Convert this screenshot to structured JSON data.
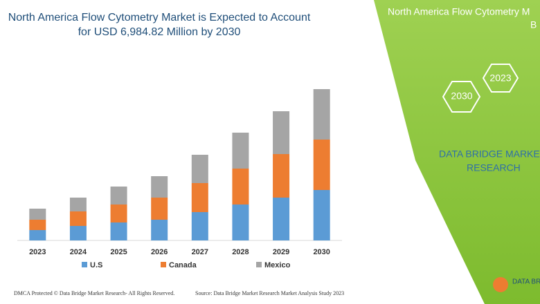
{
  "chart_data": {
    "type": "bar",
    "stacked": true,
    "title_lines": [
      "North America Flow Cytometry Market is Expected to Account",
      "for USD 6,984.82 Million by 2030"
    ],
    "categories": [
      "2023",
      "2024",
      "2025",
      "2026",
      "2027",
      "2028",
      "2029",
      "2030"
    ],
    "series": [
      {
        "name": "U.S",
        "color": "#5b9bd5",
        "values": [
          15,
          21,
          26,
          30,
          41,
          52,
          62,
          73
        ]
      },
      {
        "name": "Canada",
        "color": "#ed7d31",
        "values": [
          15,
          21,
          26,
          32,
          42,
          52,
          63,
          73
        ]
      },
      {
        "name": "Mexico",
        "color": "#a5a5a5",
        "values": [
          16,
          20,
          26,
          31,
          41,
          52,
          62,
          73
        ]
      }
    ]
  },
  "side_panel": {
    "heading_lines": [
      "North America Flow Cytometry M",
      "B"
    ],
    "hexagons": [
      "2023",
      "2030"
    ],
    "brand_lines": [
      "DATA BRIDGE MARKET",
      "RESEARCH"
    ]
  },
  "footer": {
    "left": "DMCA Protected © Data Bridge Market Research- All Rights Reserved.",
    "right": "Source: Data Bridge Market Research Market Analysis Study 2023",
    "logo": "DATA BRI"
  }
}
